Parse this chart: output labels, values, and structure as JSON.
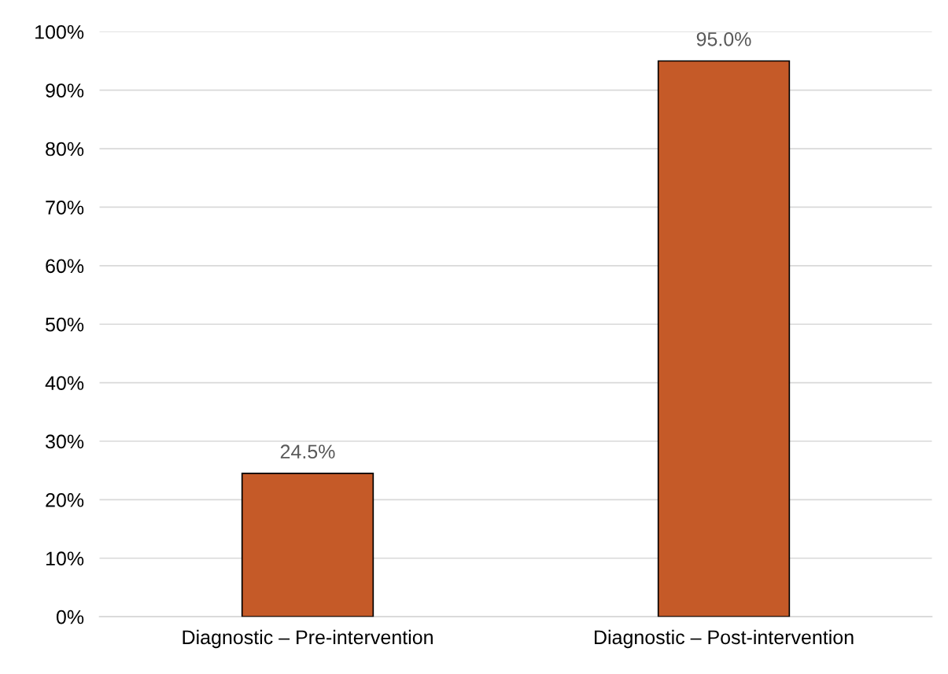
{
  "chart_data": {
    "type": "bar",
    "categories": [
      "Diagnostic – Pre-intervention",
      "Diagnostic – Post-intervention"
    ],
    "values": [
      24.5,
      95.0
    ],
    "value_labels": [
      "24.5%",
      "95.0%"
    ],
    "color": "#c55a28",
    "ylim": [
      0,
      100
    ],
    "yticks": [
      {
        "value": 0,
        "label": "0%"
      },
      {
        "value": 10,
        "label": "10%"
      },
      {
        "value": 20,
        "label": "20%"
      },
      {
        "value": 30,
        "label": "30%"
      },
      {
        "value": 40,
        "label": "40%"
      },
      {
        "value": 50,
        "label": "50%"
      },
      {
        "value": 60,
        "label": "60%"
      },
      {
        "value": 70,
        "label": "70%"
      },
      {
        "value": 80,
        "label": "80%"
      },
      {
        "value": 90,
        "label": "90%"
      },
      {
        "value": 100,
        "label": "100%"
      }
    ],
    "grid": "y"
  }
}
